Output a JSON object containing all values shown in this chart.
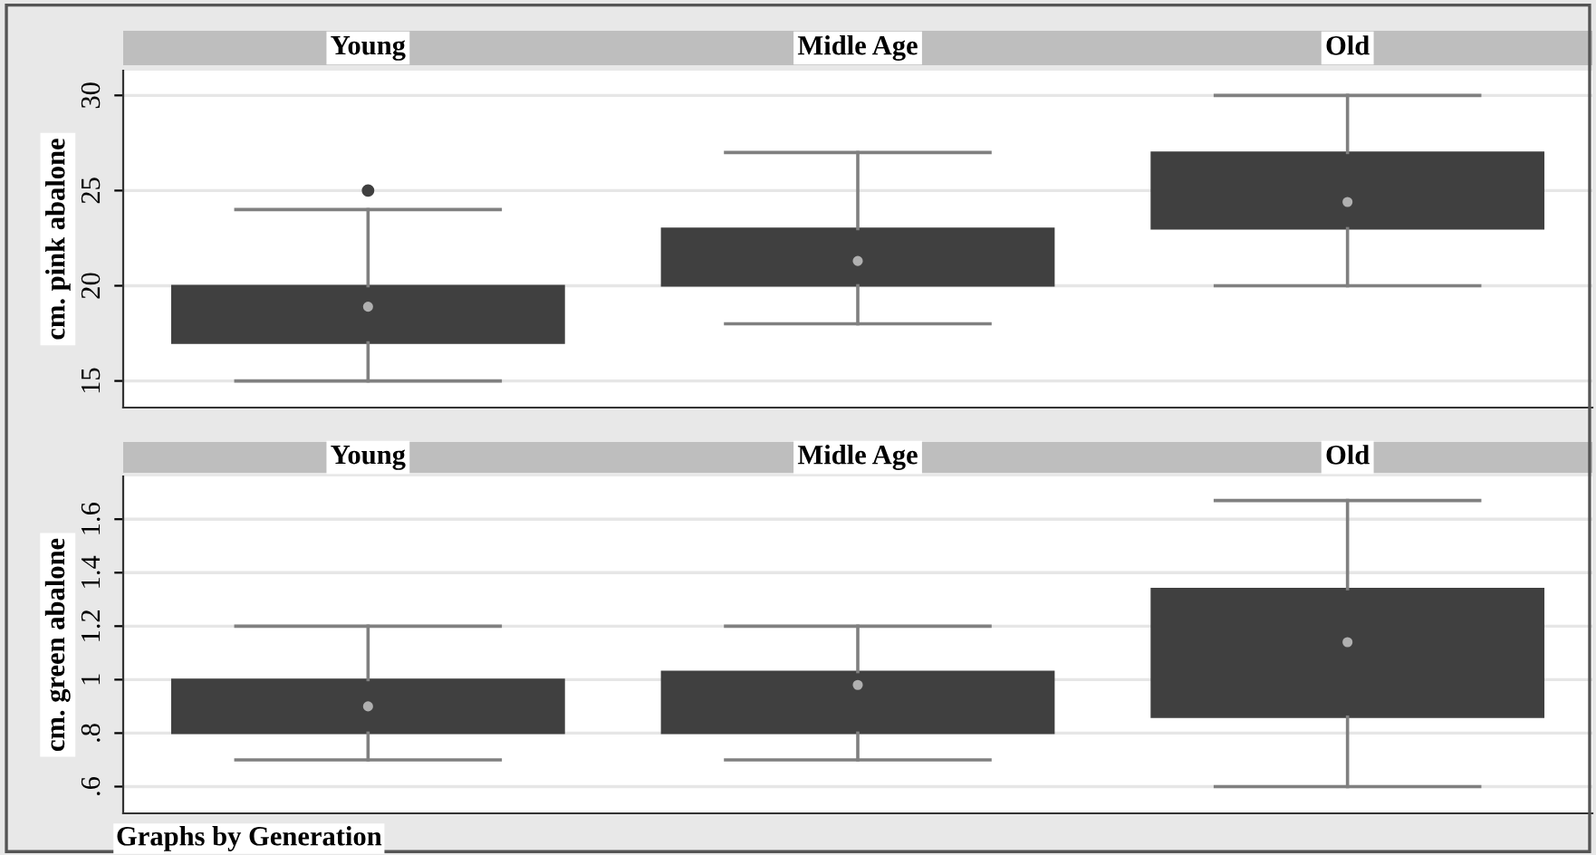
{
  "chart_data": [
    {
      "type": "box",
      "categories": [
        "Young",
        "Midle Age",
        "Old"
      ],
      "ylabel": "cm. pink abalone",
      "ylim": [
        13.6,
        31.3
      ],
      "yticks": [
        15,
        20,
        25,
        30
      ],
      "grid": "y",
      "tick_labels": "y",
      "color": "#404040",
      "boxes": [
        {
          "low": 15,
          "q1": 17,
          "median": 18.9,
          "q3": 20,
          "high": 24,
          "outliers": [
            25
          ]
        },
        {
          "low": 18,
          "q1": 20,
          "median": 21.3,
          "q3": 23,
          "high": 27
        },
        {
          "low": 20,
          "q1": 23,
          "median": 24.4,
          "q3": 27,
          "high": 30
        }
      ]
    },
    {
      "type": "box",
      "categories": [
        "Young",
        "Midle Age",
        "Old"
      ],
      "ylabel": "cm. green abalone",
      "ylim": [
        0.5,
        1.76
      ],
      "yticks": [
        {
          "value": 0.6,
          "label": ".6"
        },
        {
          "value": 0.8,
          "label": ".8"
        },
        1,
        1.2,
        1.4,
        1.6
      ],
      "grid": "y",
      "tick_labels": "y",
      "color": "#404040",
      "boxes": [
        {
          "low": 0.7,
          "q1": 0.8,
          "median": 0.9,
          "q3": 1.0,
          "high": 1.2
        },
        {
          "low": 0.7,
          "q1": 0.8,
          "median": 0.98,
          "q3": 1.03,
          "high": 1.2
        },
        {
          "low": 0.6,
          "q1": 0.86,
          "median": 1.14,
          "q3": 1.34,
          "high": 1.67
        }
      ],
      "annotations": [
        "Graphs by Generation"
      ]
    }
  ]
}
